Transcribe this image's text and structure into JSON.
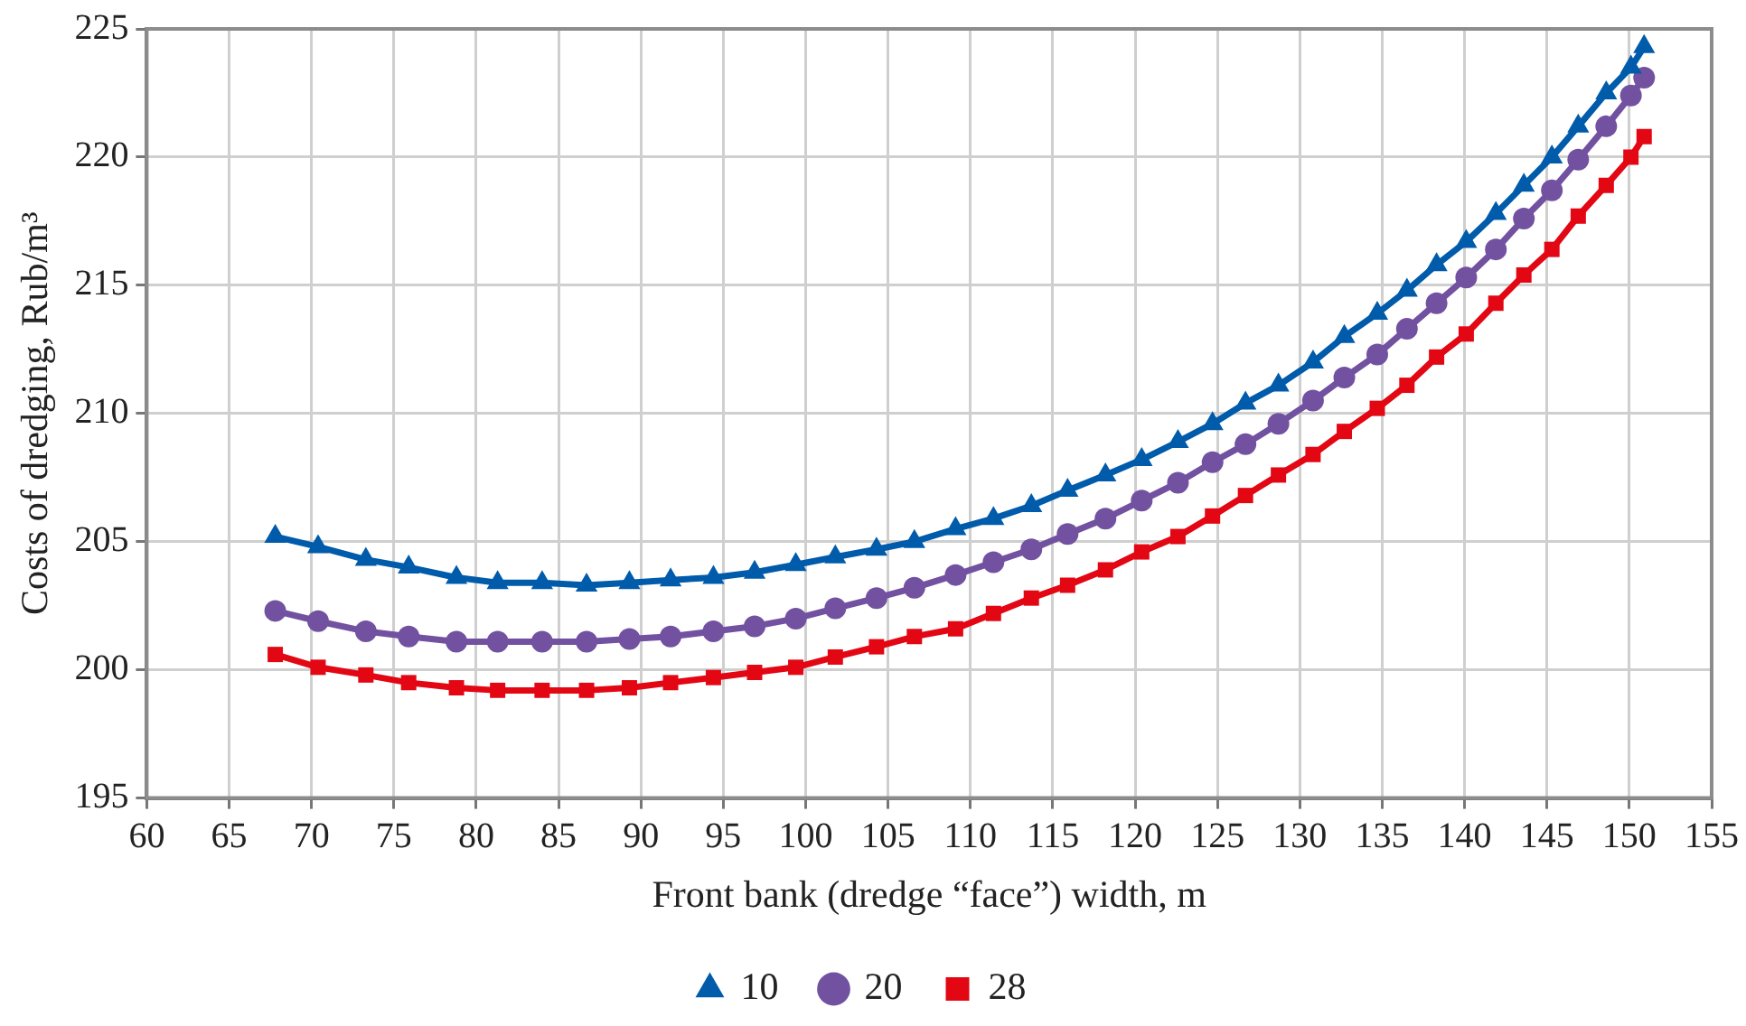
{
  "chart_data": {
    "type": "line",
    "xlabel": "Front bank (dredge “face”) width, m",
    "ylabel": "Costs of dredging, Rub/m³",
    "x": [
      67.8,
      70.4,
      73.3,
      75.9,
      78.8,
      81.3,
      84.0,
      86.7,
      89.3,
      91.8,
      94.4,
      96.9,
      99.4,
      101.8,
      104.3,
      106.6,
      109.1,
      111.4,
      113.7,
      115.9,
      118.2,
      120.4,
      122.6,
      124.7,
      126.7,
      128.7,
      130.8,
      132.7,
      134.7,
      136.5,
      138.3,
      140.1,
      141.9,
      143.6,
      145.3,
      146.9,
      148.6,
      150.1,
      150.9
    ],
    "xlim": [
      60,
      155
    ],
    "xticks": [
      60,
      65,
      70,
      75,
      80,
      85,
      90,
      95,
      100,
      105,
      110,
      115,
      120,
      125,
      130,
      135,
      140,
      145,
      150,
      155
    ],
    "ylim": [
      195,
      225
    ],
    "yticks": [
      195,
      200,
      205,
      210,
      215,
      220,
      225
    ],
    "grid": true,
    "legend": "bottom",
    "line_style": "solid",
    "series": [
      {
        "name": "10",
        "color": "#005bab",
        "marker": "triangle",
        "values": [
          205.2,
          204.8,
          204.3,
          204.0,
          203.6,
          203.4,
          203.4,
          203.3,
          203.4,
          203.5,
          203.6,
          203.8,
          204.1,
          204.4,
          204.7,
          205.0,
          205.5,
          205.9,
          206.4,
          207.0,
          207.6,
          208.2,
          208.9,
          209.6,
          210.4,
          211.1,
          212.0,
          213.0,
          213.9,
          214.8,
          215.8,
          216.7,
          217.8,
          218.9,
          220.0,
          221.2,
          222.5,
          223.5,
          224.3
        ]
      },
      {
        "name": "20",
        "color": "#7151a0",
        "marker": "circle",
        "values": [
          202.3,
          201.9,
          201.5,
          201.3,
          201.1,
          201.1,
          201.1,
          201.1,
          201.2,
          201.3,
          201.5,
          201.7,
          202.0,
          202.4,
          202.8,
          203.2,
          203.7,
          204.2,
          204.7,
          205.3,
          205.9,
          206.6,
          207.3,
          208.1,
          208.8,
          209.6,
          210.5,
          211.4,
          212.3,
          213.3,
          214.3,
          215.3,
          216.4,
          217.6,
          218.7,
          219.9,
          221.2,
          222.4,
          223.1
        ]
      },
      {
        "name": "28",
        "color": "#e30613",
        "marker": "square",
        "values": [
          200.6,
          200.1,
          199.8,
          199.5,
          199.3,
          199.2,
          199.2,
          199.2,
          199.3,
          199.5,
          199.7,
          199.9,
          200.1,
          200.5,
          200.9,
          201.3,
          201.6,
          202.2,
          202.8,
          203.3,
          203.9,
          204.6,
          205.2,
          206.0,
          206.8,
          207.6,
          208.4,
          209.3,
          210.2,
          211.1,
          212.2,
          213.1,
          214.3,
          215.4,
          216.4,
          217.7,
          218.9,
          220.0,
          220.8
        ]
      }
    ]
  }
}
